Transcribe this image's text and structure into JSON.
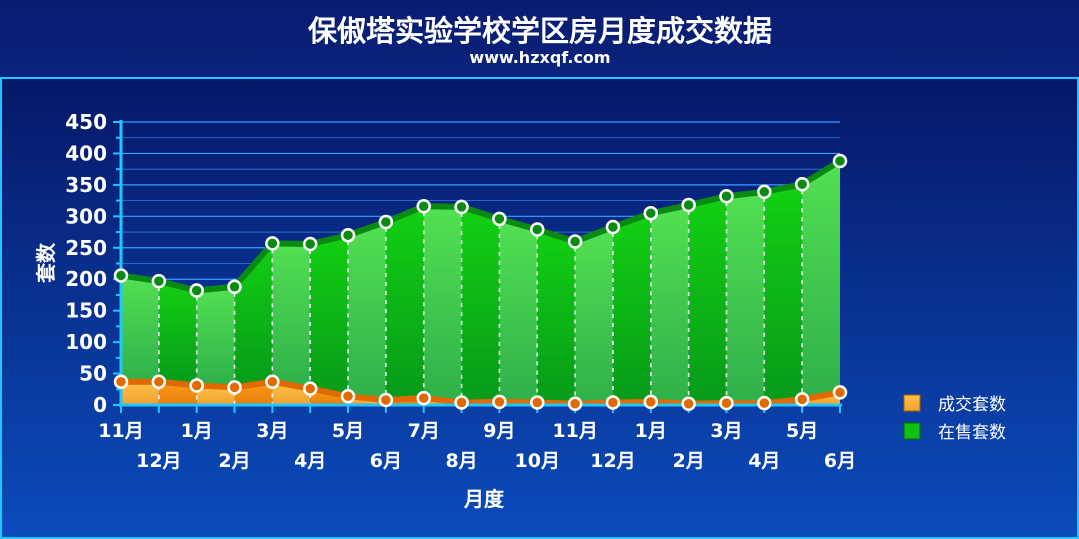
{
  "header": {
    "title": "保俶塔实验学校学区房月度成交数据",
    "subtitle": "www.hzxqf.com"
  },
  "colors": {
    "background_top": "#0a1f78",
    "background_bottom": "#0c4fb6",
    "panel": "#0a2a8a",
    "sold_series": "#f39a1e",
    "listed_series": "#19c419",
    "axis": "#1ec8ff"
  },
  "chart_data": {
    "type": "area",
    "xlabel": "月度",
    "ylabel": "套数",
    "ylim": [
      0,
      450
    ],
    "yticks": [
      "0",
      "50",
      "100",
      "150",
      "200",
      "250",
      "300",
      "350",
      "400",
      "450"
    ],
    "grid": true,
    "legend_position": "right",
    "categories": [
      "11月",
      "12月",
      "1月",
      "2月",
      "3月",
      "4月",
      "5月",
      "6月",
      "7月",
      "8月",
      "9月",
      "10月",
      "11月",
      "12月",
      "1月",
      "2月",
      "3月",
      "4月",
      "5月",
      "6月"
    ],
    "series": [
      {
        "name": "成交套数",
        "values": [
          37,
          37,
          31,
          28,
          37,
          26,
          14,
          8,
          11,
          4,
          5,
          4,
          2,
          4,
          5,
          2,
          3,
          3,
          9,
          20
        ]
      },
      {
        "name": "在售套数",
        "values": [
          206,
          197,
          182,
          188,
          257,
          256,
          270,
          291,
          316,
          315,
          296,
          279,
          260,
          283,
          305,
          318,
          332,
          339,
          351,
          388
        ]
      }
    ]
  }
}
